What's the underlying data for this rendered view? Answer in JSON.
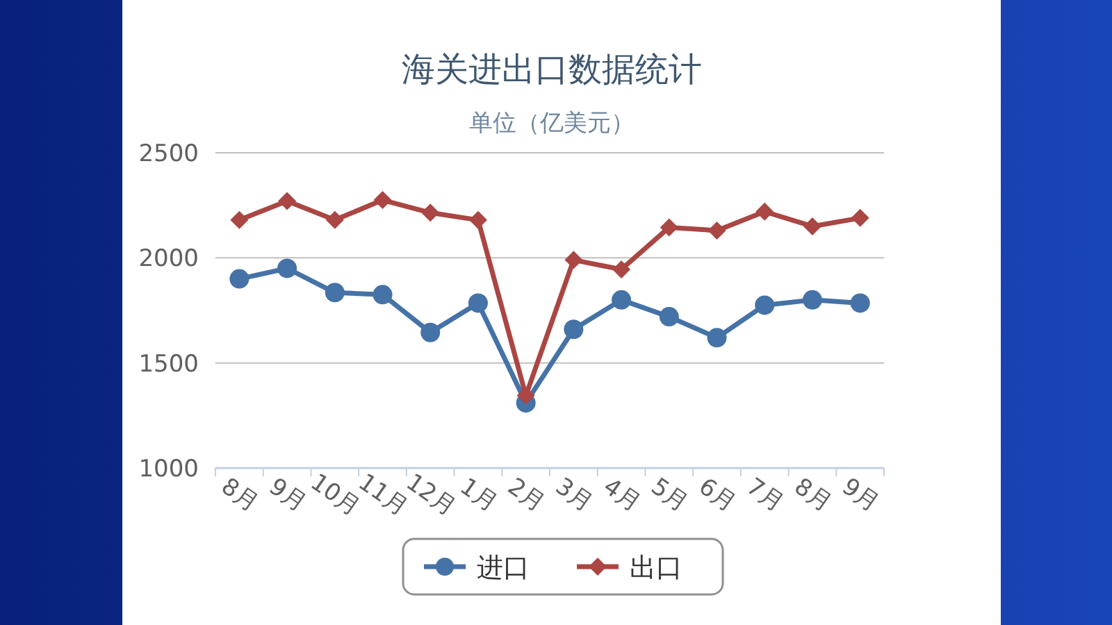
{
  "chart_data": {
    "type": "line",
    "title": "海关进出口数据统计",
    "subtitle": "单位（亿美元）",
    "categories": [
      "8月",
      "9月",
      "10月",
      "11月",
      "12月",
      "1月",
      "2月",
      "3月",
      "4月",
      "5月",
      "6月",
      "7月",
      "8月",
      "9月"
    ],
    "series": [
      {
        "name": "进口",
        "color": "#4572a7",
        "marker": "circle",
        "values": [
          1900,
          1950,
          1835,
          1825,
          1645,
          1785,
          1310,
          1660,
          1800,
          1720,
          1620,
          1775,
          1800,
          1785
        ]
      },
      {
        "name": "出口",
        "color": "#aa4643",
        "marker": "diamond",
        "values": [
          2180,
          2270,
          2180,
          2275,
          2215,
          2180,
          1345,
          1990,
          1945,
          2145,
          2130,
          2220,
          2150,
          2190
        ]
      }
    ],
    "ylim": [
      1000,
      2500
    ],
    "yticks": [
      1000,
      1500,
      2000,
      2500
    ],
    "grid": "y",
    "legend": "bottom",
    "line_style": "solid"
  }
}
